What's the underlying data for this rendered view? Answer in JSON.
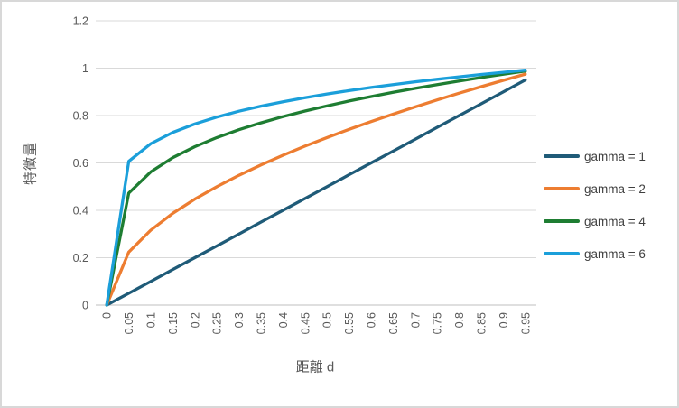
{
  "chart_data": {
    "type": "line",
    "title": "",
    "xlabel": "距離 d",
    "ylabel": "特徴量",
    "categories": [
      "0",
      "0.05",
      "0.1",
      "0.15",
      "0.2",
      "0.25",
      "0.3",
      "0.35",
      "0.4",
      "0.45",
      "0.5",
      "0.55",
      "0.6",
      "0.65",
      "0.7",
      "0.75",
      "0.8",
      "0.85",
      "0.9",
      "0.95"
    ],
    "y_ticks": [
      "0",
      "0.2",
      "0.4",
      "0.6",
      "0.8",
      "1",
      "1.2"
    ],
    "ylim": [
      0,
      1.2
    ],
    "grid": true,
    "legend_position": "right",
    "series": [
      {
        "name": "gamma = 1",
        "color": "#1F5B78",
        "values": [
          0,
          0.05,
          0.1,
          0.15,
          0.2,
          0.25,
          0.3,
          0.35,
          0.4,
          0.45,
          0.5,
          0.55,
          0.6,
          0.65,
          0.7,
          0.75,
          0.8,
          0.85,
          0.9,
          0.95
        ]
      },
      {
        "name": "gamma = 2",
        "color": "#ED7D31",
        "values": [
          0,
          0.2236,
          0.3162,
          0.3873,
          0.4472,
          0.5,
          0.5477,
          0.5916,
          0.6325,
          0.6708,
          0.7071,
          0.7416,
          0.7746,
          0.8062,
          0.8367,
          0.866,
          0.8944,
          0.922,
          0.9487,
          0.9747
        ]
      },
      {
        "name": "gamma = 4",
        "color": "#1E7D32",
        "values": [
          0,
          0.4729,
          0.5623,
          0.6223,
          0.6687,
          0.7071,
          0.7401,
          0.7692,
          0.7953,
          0.819,
          0.8409,
          0.8612,
          0.8801,
          0.8979,
          0.9147,
          0.9306,
          0.9457,
          0.9602,
          0.974,
          0.9873
        ]
      },
      {
        "name": "gamma = 6",
        "color": "#1B9FDA",
        "values": [
          0,
          0.607,
          0.6813,
          0.7289,
          0.7647,
          0.7937,
          0.8182,
          0.8395,
          0.8584,
          0.8754,
          0.8909,
          0.9052,
          0.9184,
          0.9307,
          0.9423,
          0.9532,
          0.9635,
          0.9733,
          0.9826,
          0.9915
        ]
      }
    ]
  },
  "colors": {
    "gridline": "#D9D9D9",
    "axis_line": "#BFBFBF",
    "tick_text": "#595959",
    "title_text": "#595959",
    "legend_text": "#3F3F3F",
    "frame_border": "#D8D8D8",
    "background": "#FFFFFF"
  }
}
